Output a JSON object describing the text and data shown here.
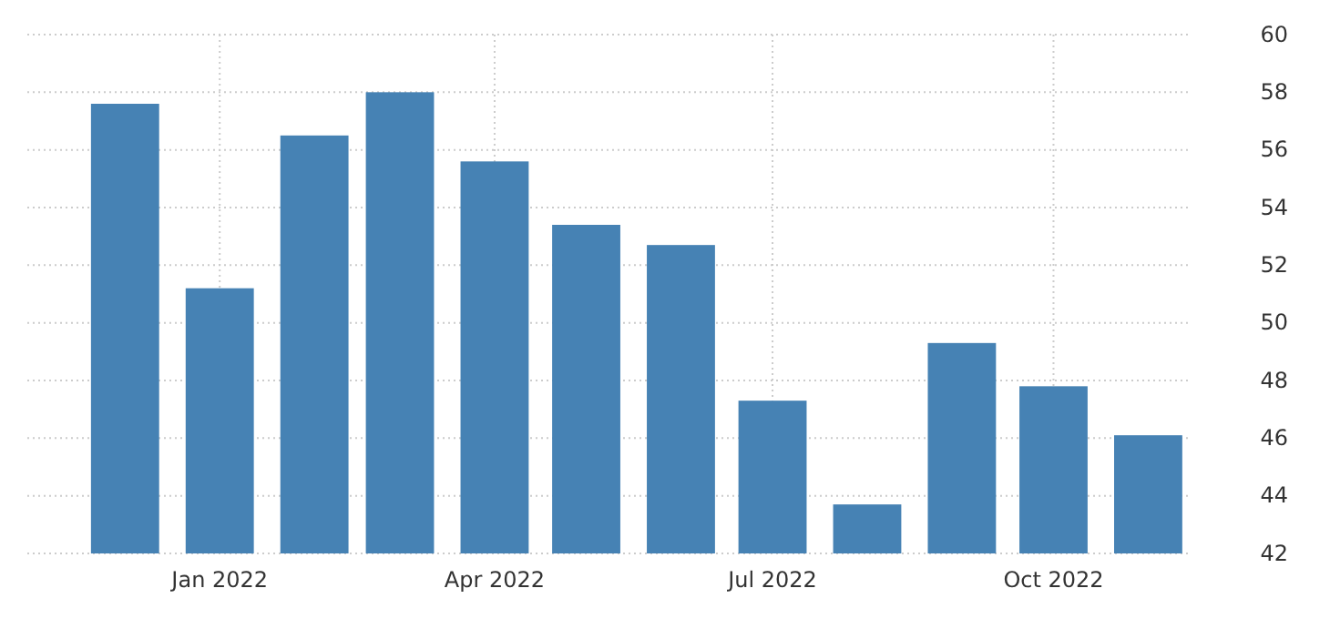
{
  "chart_data": {
    "type": "bar",
    "x": [
      "2021-12",
      "2022-01",
      "2022-02",
      "2022-03",
      "2022-04",
      "2022-05",
      "2022-06",
      "2022-07",
      "2022-08",
      "2022-09",
      "2022-10",
      "2022-11"
    ],
    "values": [
      57.6,
      51.2,
      56.5,
      58.0,
      55.6,
      53.4,
      52.7,
      47.3,
      43.7,
      49.3,
      47.8,
      46.1
    ],
    "color": "#4682b4",
    "xlim": [
      "2021-10-30",
      "2022-11-14"
    ],
    "xticks": [
      {
        "value": "2022-01",
        "label": "Jan 2022"
      },
      {
        "value": "2022-04",
        "label": "Apr 2022"
      },
      {
        "value": "2022-07",
        "label": "Jul 2022"
      },
      {
        "value": "2022-10",
        "label": "Oct 2022"
      }
    ],
    "ylim": [
      42,
      60
    ],
    "yticks": [
      42,
      44,
      46,
      48,
      50,
      52,
      54,
      56,
      58,
      60
    ],
    "grid": true
  }
}
